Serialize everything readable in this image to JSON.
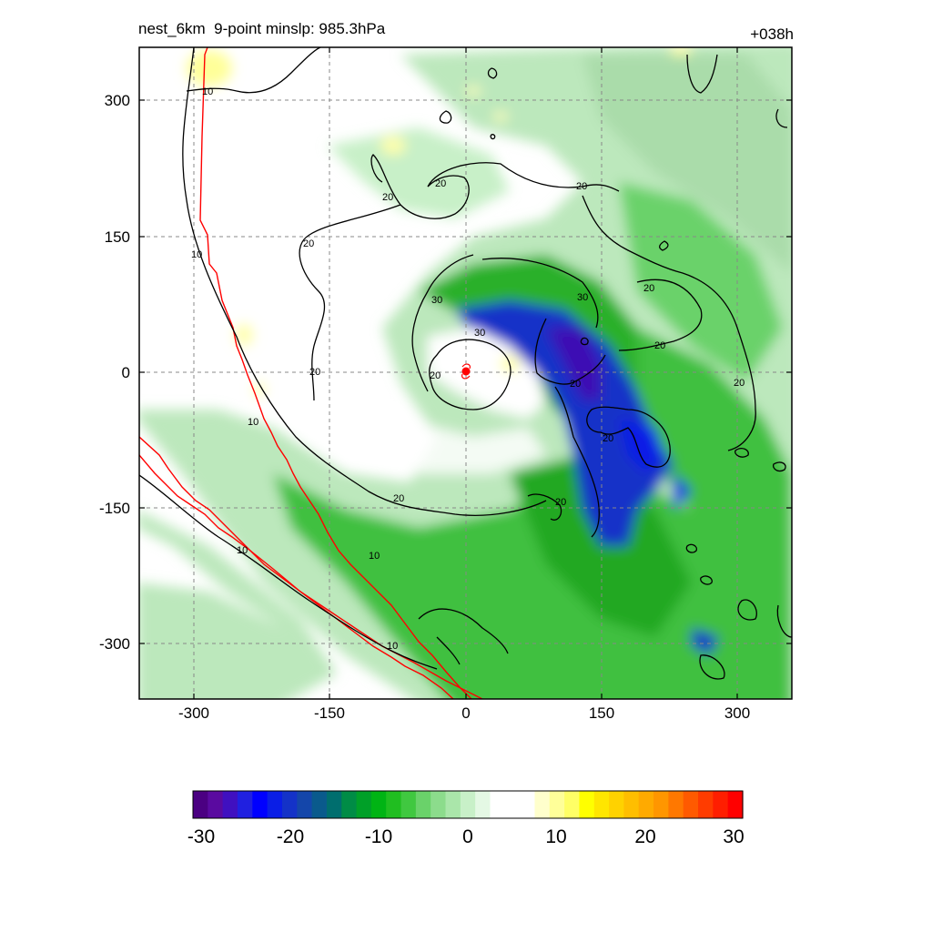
{
  "header": {
    "title_left": "nest_6km  9-point minslp: 985.3hPa",
    "title_right": "+038h"
  },
  "map": {
    "x_ticks": [
      "-300",
      "-150",
      "0",
      "150",
      "300"
    ],
    "y_ticks": [
      "300",
      "150",
      "0",
      "-150",
      "-300"
    ],
    "contour_labels": [
      "10",
      "10",
      "10",
      "10",
      "10",
      "10",
      "20",
      "20",
      "20",
      "20",
      "20",
      "20",
      "20",
      "20",
      "20",
      "20",
      "20",
      "20",
      "20",
      "30",
      "30",
      "30"
    ],
    "colors": {
      "contour_line": "#000000",
      "boundary_line": "#ff0000",
      "grid_line": "#888888",
      "storm_center": "#ff0000"
    }
  },
  "colorbar": {
    "labels": [
      "-30",
      "-20",
      "-10",
      "0",
      "10",
      "20",
      "30"
    ],
    "colors": [
      "#4b0082",
      "#5a0aa0",
      "#4010c0",
      "#2020e0",
      "#0000ff",
      "#0a1ee6",
      "#1432c8",
      "#1446aa",
      "#0a5a8c",
      "#006e6e",
      "#008c46",
      "#00a028",
      "#00b414",
      "#20be20",
      "#40c840",
      "#6ad26a",
      "#8cdc8c",
      "#aae6aa",
      "#c8f0c8",
      "#e4f8e4",
      "#ffffff",
      "#ffffff",
      "#ffffff",
      "#ffffcc",
      "#ffff99",
      "#ffff66",
      "#ffff00",
      "#ffe600",
      "#ffd200",
      "#ffbe00",
      "#ffaa00",
      "#ff9600",
      "#ff7800",
      "#ff5a00",
      "#ff3c00",
      "#ff1e00",
      "#ff0000"
    ]
  }
}
